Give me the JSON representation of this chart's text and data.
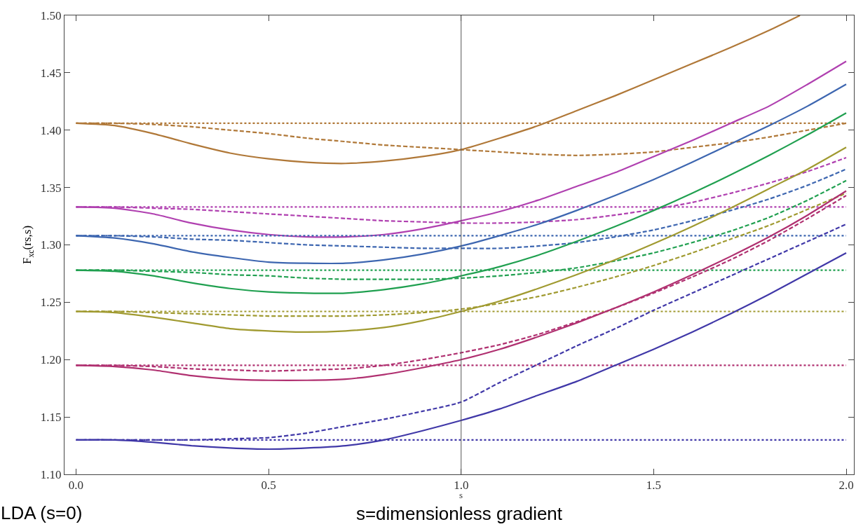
{
  "chart_data": {
    "type": "line",
    "xlabel": "s=dimensionless gradient",
    "ylabel": "F$_{xc}$(rs,s)",
    "x": [
      0,
      0.1,
      0.2,
      0.3,
      0.4,
      0.5,
      0.6,
      0.7,
      0.8,
      0.9,
      1.0,
      1.1,
      1.2,
      1.3,
      1.4,
      1.5,
      1.6,
      1.7,
      1.8,
      1.9,
      2.0
    ],
    "xlim": [
      -0.03,
      2.02
    ],
    "xticks": [
      {
        "value": 0,
        "label": "0.0"
      },
      {
        "value": 0.5,
        "label": "0.5"
      },
      {
        "value": 1,
        "label": "1.0"
      },
      {
        "value": 1.5,
        "label": "1.5"
      },
      {
        "value": 2,
        "label": "2.0"
      }
    ],
    "ylim": [
      1.1,
      1.5
    ],
    "yticks": [
      {
        "value": 1.1,
        "label": "1.10"
      },
      {
        "value": 1.15,
        "label": "1.15"
      },
      {
        "value": 1.2,
        "label": "1.20"
      },
      {
        "value": 1.25,
        "label": "1.25"
      },
      {
        "value": 1.3,
        "label": "1.30"
      },
      {
        "value": 1.35,
        "label": "1.35"
      },
      {
        "value": 1.4,
        "label": "1.40"
      },
      {
        "value": 1.45,
        "label": "1.45"
      },
      {
        "value": 1.5,
        "label": "1.50"
      }
    ],
    "grid": false,
    "marker": "none",
    "ref_lines": [
      {
        "axis": "x",
        "value": 1,
        "color": "#555555"
      }
    ],
    "annotations": [
      "LDA (s=0)",
      "s"
    ],
    "series": [
      {
        "color": "#b07838",
        "line_style": "solid",
        "x": [
          0,
          0.1,
          0.2,
          0.3,
          0.4,
          0.5,
          0.6,
          0.7,
          0.8,
          0.9,
          1.0,
          1.1,
          1.2,
          1.3,
          1.4,
          1.5,
          1.6,
          1.7,
          1.8,
          1.88
        ],
        "values": [
          1.406,
          1.404,
          1.397,
          1.388,
          1.38,
          1.375,
          1.372,
          1.371,
          1.373,
          1.377,
          1.383,
          1.393,
          1.404,
          1.417,
          1.43,
          1.444,
          1.458,
          1.472,
          1.487,
          1.5
        ]
      },
      {
        "color": "#b07838",
        "line_style": "dashed",
        "values": [
          1.406,
          1.406,
          1.405,
          1.403,
          1.4,
          1.397,
          1.393,
          1.39,
          1.387,
          1.385,
          1.383,
          1.381,
          1.379,
          1.378,
          1.379,
          1.381,
          1.385,
          1.389,
          1.394,
          1.4,
          1.406
        ]
      },
      {
        "color": "#b07838",
        "line_style": "dotted",
        "x": [
          0,
          2
        ],
        "values": [
          1.406,
          1.406
        ]
      },
      {
        "color": "#b040b0",
        "line_style": "solid",
        "values": [
          1.333,
          1.332,
          1.327,
          1.319,
          1.313,
          1.309,
          1.307,
          1.307,
          1.309,
          1.314,
          1.321,
          1.329,
          1.339,
          1.351,
          1.363,
          1.377,
          1.391,
          1.406,
          1.421,
          1.44,
          1.46
        ]
      },
      {
        "color": "#b040b0",
        "line_style": "dashed",
        "values": [
          1.333,
          1.333,
          1.332,
          1.331,
          1.329,
          1.327,
          1.325,
          1.323,
          1.321,
          1.32,
          1.319,
          1.319,
          1.32,
          1.322,
          1.326,
          1.331,
          1.337,
          1.345,
          1.354,
          1.364,
          1.376
        ]
      },
      {
        "color": "#b040b0",
        "line_style": "dotted",
        "x": [
          0,
          2
        ],
        "values": [
          1.333,
          1.333
        ]
      },
      {
        "color": "#3d66b0",
        "line_style": "solid",
        "values": [
          1.308,
          1.306,
          1.301,
          1.294,
          1.289,
          1.285,
          1.284,
          1.284,
          1.287,
          1.292,
          1.299,
          1.308,
          1.318,
          1.33,
          1.343,
          1.357,
          1.372,
          1.388,
          1.404,
          1.421,
          1.44
        ]
      },
      {
        "color": "#3d66b0",
        "line_style": "dashed",
        "values": [
          1.308,
          1.308,
          1.307,
          1.305,
          1.304,
          1.302,
          1.3,
          1.299,
          1.298,
          1.297,
          1.297,
          1.297,
          1.299,
          1.302,
          1.307,
          1.313,
          1.321,
          1.33,
          1.34,
          1.352,
          1.366
        ]
      },
      {
        "color": "#3d66b0",
        "line_style": "dotted",
        "x": [
          0,
          2
        ],
        "values": [
          1.308,
          1.308
        ]
      },
      {
        "color": "#20a050",
        "line_style": "solid",
        "values": [
          1.278,
          1.277,
          1.273,
          1.267,
          1.262,
          1.259,
          1.258,
          1.258,
          1.261,
          1.266,
          1.273,
          1.281,
          1.291,
          1.303,
          1.316,
          1.33,
          1.345,
          1.361,
          1.378,
          1.396,
          1.415
        ]
      },
      {
        "color": "#20a050",
        "line_style": "dashed",
        "values": [
          1.278,
          1.278,
          1.277,
          1.276,
          1.274,
          1.273,
          1.271,
          1.27,
          1.27,
          1.27,
          1.271,
          1.273,
          1.276,
          1.28,
          1.286,
          1.293,
          1.302,
          1.312,
          1.324,
          1.339,
          1.356
        ]
      },
      {
        "color": "#20a050",
        "line_style": "dotted",
        "x": [
          0,
          2
        ],
        "values": [
          1.278,
          1.278
        ]
      },
      {
        "color": "#a09a30",
        "line_style": "solid",
        "values": [
          1.242,
          1.241,
          1.237,
          1.232,
          1.227,
          1.225,
          1.224,
          1.225,
          1.228,
          1.234,
          1.242,
          1.251,
          1.262,
          1.274,
          1.287,
          1.301,
          1.316,
          1.332,
          1.349,
          1.366,
          1.385
        ]
      },
      {
        "color": "#a09a30",
        "line_style": "dashed",
        "values": [
          1.242,
          1.242,
          1.241,
          1.24,
          1.239,
          1.238,
          1.238,
          1.238,
          1.239,
          1.241,
          1.244,
          1.249,
          1.255,
          1.263,
          1.272,
          1.282,
          1.293,
          1.305,
          1.317,
          1.331,
          1.345
        ]
      },
      {
        "color": "#a09a30",
        "line_style": "dotted",
        "x": [
          0,
          2
        ],
        "values": [
          1.242,
          1.242
        ]
      },
      {
        "color": "#b03070",
        "line_style": "solid",
        "values": [
          1.195,
          1.194,
          1.191,
          1.186,
          1.183,
          1.182,
          1.182,
          1.183,
          1.187,
          1.193,
          1.2,
          1.209,
          1.22,
          1.232,
          1.245,
          1.259,
          1.274,
          1.29,
          1.307,
          1.326,
          1.347
        ]
      },
      {
        "color": "#b03070",
        "line_style": "dashed",
        "values": [
          1.195,
          1.195,
          1.194,
          1.192,
          1.191,
          1.19,
          1.191,
          1.192,
          1.195,
          1.2,
          1.206,
          1.213,
          1.222,
          1.233,
          1.245,
          1.258,
          1.272,
          1.287,
          1.304,
          1.323,
          1.343
        ]
      },
      {
        "color": "#b03070",
        "line_style": "dotted",
        "x": [
          0,
          2
        ],
        "values": [
          1.195,
          1.195
        ]
      },
      {
        "color": "#4038a8",
        "line_style": "solid",
        "values": [
          1.13,
          1.13,
          1.128,
          1.125,
          1.123,
          1.122,
          1.123,
          1.125,
          1.13,
          1.138,
          1.147,
          1.157,
          1.169,
          1.181,
          1.195,
          1.209,
          1.224,
          1.24,
          1.257,
          1.275,
          1.293
        ]
      },
      {
        "color": "#4038a8",
        "line_style": "dashed",
        "values": [
          1.13,
          1.13,
          1.13,
          1.13,
          1.131,
          1.132,
          1.136,
          1.142,
          1.148,
          1.155,
          1.163,
          1.18,
          1.196,
          1.212,
          1.227,
          1.243,
          1.258,
          1.273,
          1.288,
          1.303,
          1.318
        ]
      },
      {
        "color": "#4038a8",
        "line_style": "dotted",
        "x": [
          0,
          2
        ],
        "values": [
          1.13,
          1.13
        ]
      }
    ]
  }
}
